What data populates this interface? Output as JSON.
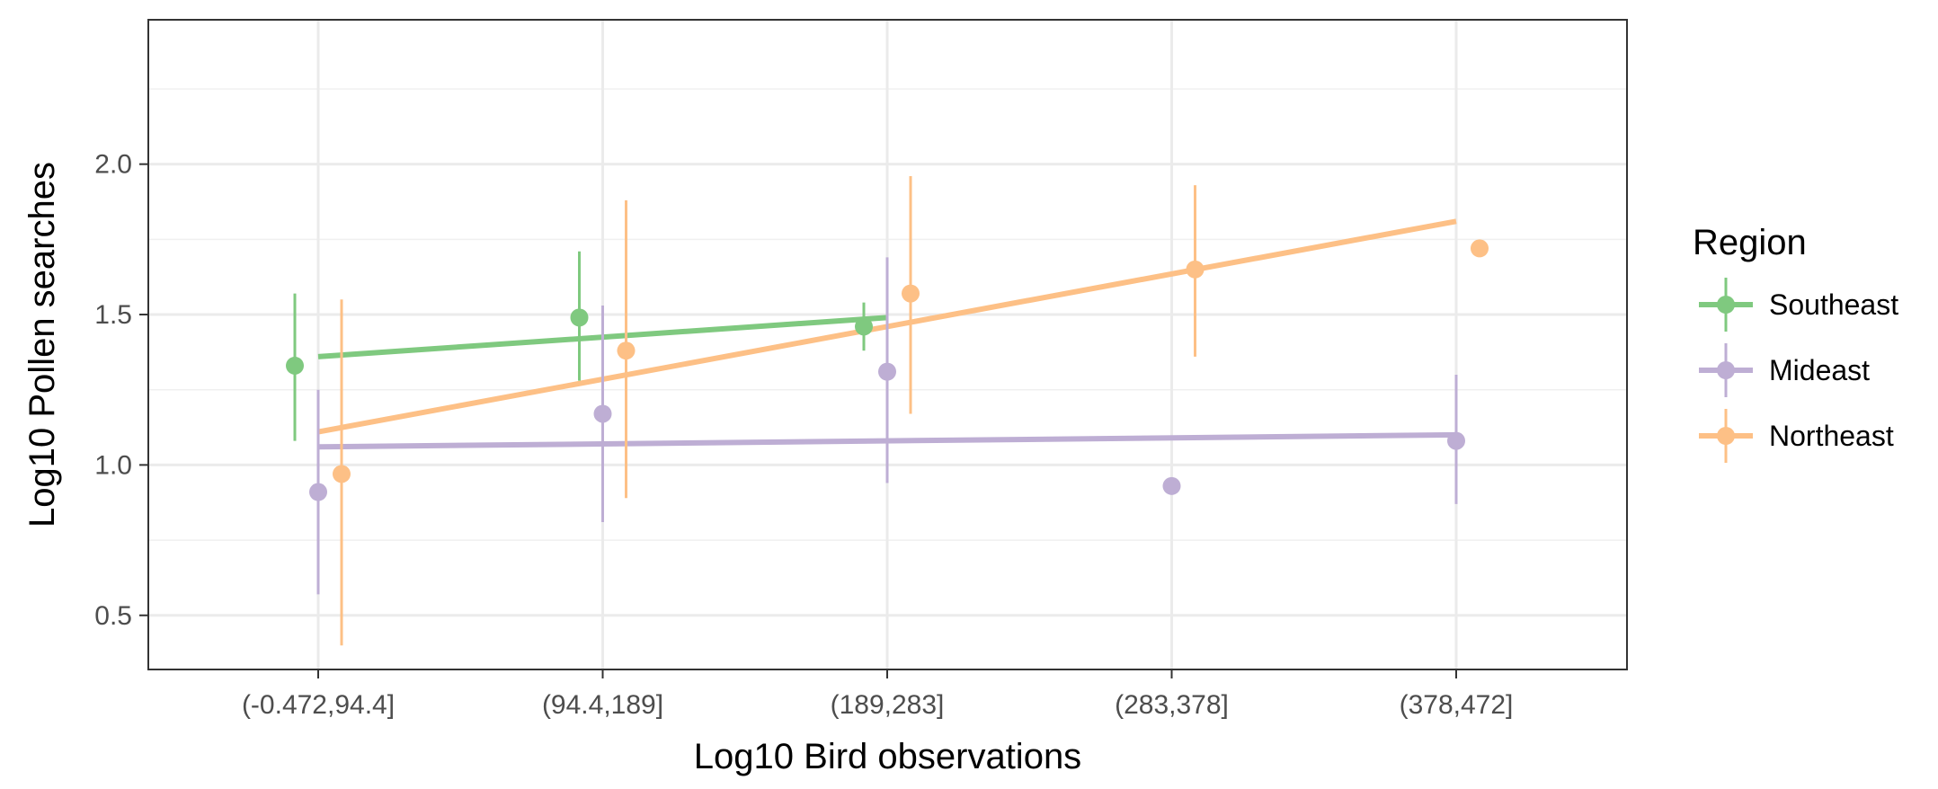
{
  "chart_data": {
    "type": "scatter",
    "xlabel": "Log10 Bird observations",
    "ylabel": "Log10 Pollen searches",
    "categories": [
      "(-0.472,94.4]",
      "(94.4,189]",
      "(189,283]",
      "(283,378]",
      "(378,472]"
    ],
    "yticks": [
      0.5,
      1.0,
      1.5,
      2.0
    ],
    "ytick_labels": [
      "0.5",
      "1.0",
      "1.5",
      "2.0"
    ],
    "ylim": [
      0.32,
      2.48
    ],
    "grid": true,
    "legend": {
      "title": "Region",
      "placement": "right"
    },
    "series": [
      {
        "name": "Southeast",
        "color": "#7fc97f",
        "points": [
          {
            "category": "(-0.472,94.4]",
            "y": 1.33,
            "ymin": 1.08,
            "ymax": 1.57
          },
          {
            "category": "(94.4,189]",
            "y": 1.49,
            "ymin": 1.28,
            "ymax": 1.71
          },
          {
            "category": "(189,283]",
            "y": 1.46,
            "ymin": 1.38,
            "ymax": 1.54
          }
        ],
        "trend": {
          "from_category": "(-0.472,94.4]",
          "y_start": 1.36,
          "to_category": "(189,283]",
          "y_end": 1.49
        }
      },
      {
        "name": "Mideast",
        "color": "#beaed4",
        "points": [
          {
            "category": "(-0.472,94.4]",
            "y": 0.91,
            "ymin": 0.57,
            "ymax": 1.25
          },
          {
            "category": "(94.4,189]",
            "y": 1.17,
            "ymin": 0.81,
            "ymax": 1.53
          },
          {
            "category": "(189,283]",
            "y": 1.31,
            "ymin": 0.94,
            "ymax": 1.69
          },
          {
            "category": "(283,378]",
            "y": 0.93
          },
          {
            "category": "(378,472]",
            "y": 1.08,
            "ymin": 0.87,
            "ymax": 1.3
          }
        ],
        "trend": {
          "from_category": "(-0.472,94.4]",
          "y_start": 1.06,
          "to_category": "(378,472]",
          "y_end": 1.1
        }
      },
      {
        "name": "Northeast",
        "color": "#fdc086",
        "points": [
          {
            "category": "(-0.472,94.4]",
            "y": 0.97,
            "ymin": 0.4,
            "ymax": 1.55
          },
          {
            "category": "(94.4,189]",
            "y": 1.38,
            "ymin": 0.89,
            "ymax": 1.88
          },
          {
            "category": "(189,283]",
            "y": 1.57,
            "ymin": 1.17,
            "ymax": 1.96
          },
          {
            "category": "(283,378]",
            "y": 1.65,
            "ymin": 1.36,
            "ymax": 1.93
          },
          {
            "category": "(378,472]",
            "y": 1.72
          }
        ],
        "trend": {
          "from_category": "(-0.472,94.4]",
          "y_start": 1.11,
          "to_category": "(378,472]",
          "y_end": 1.81
        }
      }
    ]
  }
}
